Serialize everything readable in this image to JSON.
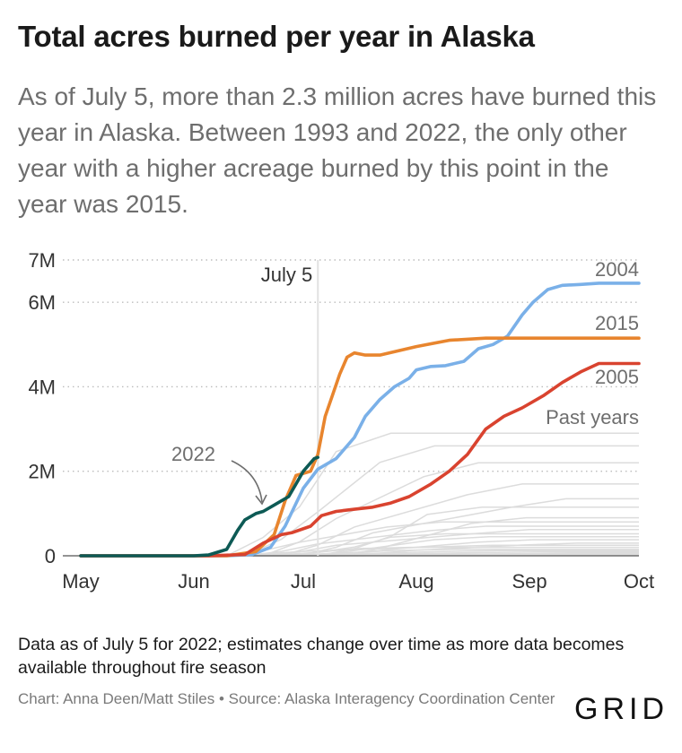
{
  "title": "Total acres burned per year in Alaska",
  "subtitle": "As of July 5, more than 2.3 million acres have burned this year in Alaska. Between 1993 and 2022, the only other year with a higher acreage burned by this point in the year was 2015.",
  "note": "Data as of July 5 for 2022; estimates change over time as more data becomes available throughout fire season",
  "credit": "Chart: Anna Deen/Matt Stiles • Source: Alaska Interagency Coordination Center",
  "logo": "GRID",
  "colors": {
    "y2004": "#7ab0e8",
    "y2015": "#e8852e",
    "y2005": "#d9432f",
    "y2022": "#0d5a55",
    "past": "#dcdcdc",
    "grid": "#bdbdbd"
  },
  "chart_data": {
    "type": "line",
    "title": "Total acres burned per year in Alaska",
    "xlabel": "",
    "ylabel": "",
    "x_ticks": [
      "May",
      "Jun",
      "Jul",
      "Aug",
      "Sep",
      "Oct"
    ],
    "y_ticks": [
      "0",
      "2M",
      "4M",
      "6M",
      "7M"
    ],
    "y_tick_values": [
      0,
      2000000,
      4000000,
      6000000,
      7000000
    ],
    "ylim": [
      0,
      7000000
    ],
    "xlim": [
      "May 1",
      "Oct 1"
    ],
    "grid": "horizontal dotted",
    "marker_label": "July 5",
    "marker_date": "Jul 5",
    "past_years_label": "Past years",
    "series": [
      {
        "name": "2004",
        "color": "#7ab0e8",
        "x": [
          "May 1",
          "Jun 10",
          "Jun 17",
          "Jun 22",
          "Jun 26",
          "Jul 1",
          "Jul 5",
          "Jul 10",
          "Jul 15",
          "Jul 18",
          "Jul 22",
          "Jul 26",
          "Jul 30",
          "Aug 1",
          "Aug 5",
          "Aug 9",
          "Aug 14",
          "Aug 18",
          "Aug 22",
          "Aug 26",
          "Aug 30",
          "Sep 2",
          "Sep 6",
          "Sep 10",
          "Sep 15",
          "Sep 20",
          "Oct 1"
        ],
        "y": [
          0,
          0,
          30000,
          200000,
          700000,
          1600000,
          2050000,
          2300000,
          2800000,
          3300000,
          3700000,
          4000000,
          4200000,
          4400000,
          4480000,
          4500000,
          4600000,
          4900000,
          5000000,
          5200000,
          5700000,
          6000000,
          6300000,
          6400000,
          6420000,
          6450000,
          6450000
        ]
      },
      {
        "name": "2015",
        "color": "#e8852e",
        "x": [
          "May 1",
          "Jun 10",
          "Jun 18",
          "Jun 23",
          "Jun 26",
          "Jun 29",
          "Jul 1",
          "Jul 3",
          "Jul 5",
          "Jul 7",
          "Jul 9",
          "Jul 11",
          "Jul 13",
          "Jul 15",
          "Jul 18",
          "Jul 22",
          "Jul 27",
          "Aug 1",
          "Aug 10",
          "Aug 20",
          "Sep 1",
          "Sep 15",
          "Oct 1"
        ],
        "y": [
          0,
          0,
          100000,
          500000,
          1300000,
          1900000,
          1950000,
          2000000,
          2400000,
          3300000,
          3800000,
          4300000,
          4700000,
          4800000,
          4750000,
          4750000,
          4850000,
          4950000,
          5100000,
          5150000,
          5150000,
          5150000,
          5150000
        ]
      },
      {
        "name": "2005",
        "color": "#d9432f",
        "x": [
          "May 1",
          "Jun 5",
          "Jun 15",
          "Jun 20",
          "Jun 25",
          "Jun 28",
          "Jul 3",
          "Jul 6",
          "Jul 10",
          "Jul 15",
          "Jul 20",
          "Jul 25",
          "Jul 30",
          "Aug 5",
          "Aug 10",
          "Aug 15",
          "Aug 20",
          "Aug 25",
          "Aug 30",
          "Sep 5",
          "Sep 10",
          "Sep 15",
          "Sep 20",
          "Oct 1"
        ],
        "y": [
          0,
          0,
          30000,
          300000,
          500000,
          550000,
          700000,
          950000,
          1050000,
          1100000,
          1150000,
          1250000,
          1400000,
          1700000,
          2000000,
          2400000,
          3000000,
          3300000,
          3500000,
          3800000,
          4100000,
          4350000,
          4550000,
          4550000
        ]
      },
      {
        "name": "2022",
        "color": "#0d5a55",
        "x": [
          "May 1",
          "Jun 1",
          "Jun 5",
          "Jun 10",
          "Jun 13",
          "Jun 15",
          "Jun 18",
          "Jun 20",
          "Jun 23",
          "Jun 25",
          "Jun 27",
          "Jun 29",
          "Jul 1",
          "Jul 3",
          "Jul 4",
          "Jul 5"
        ],
        "y": [
          0,
          0,
          20000,
          150000,
          600000,
          850000,
          1000000,
          1050000,
          1200000,
          1300000,
          1400000,
          1700000,
          2000000,
          2200000,
          2300000,
          2330000
        ]
      }
    ],
    "annotations": [
      "2004",
      "2015",
      "2005",
      "Past years",
      "2022",
      "July 5"
    ]
  }
}
